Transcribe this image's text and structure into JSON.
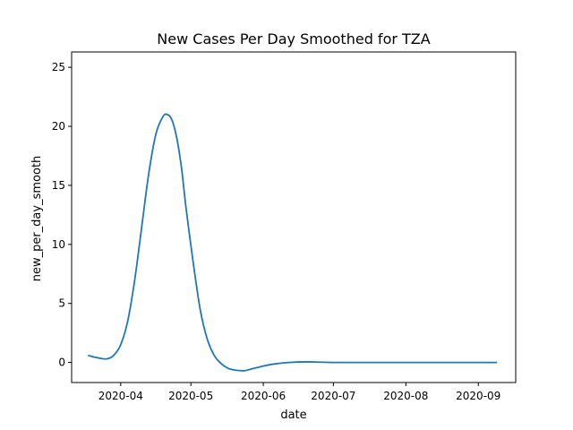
{
  "chart_data": {
    "type": "line",
    "title": "New Cases Per Day Smoothed for TZA",
    "xlabel": "date",
    "ylabel": "new_per_day_smooth",
    "xlim": [
      "2020-03-11",
      "2020-09-17"
    ],
    "ylim": [
      -1.7,
      26.3
    ],
    "x_ticks": [
      "2020-04",
      "2020-05",
      "2020-06",
      "2020-07",
      "2020-08",
      "2020-09"
    ],
    "y_ticks": [
      0,
      5,
      10,
      15,
      20,
      25
    ],
    "grid": false,
    "color": "#1f77b4",
    "series": [
      {
        "x": [
          "2020-03-18",
          "2020-03-22",
          "2020-03-26",
          "2020-03-29",
          "2020-04-01",
          "2020-04-04",
          "2020-04-07",
          "2020-04-10",
          "2020-04-13",
          "2020-04-16",
          "2020-04-19",
          "2020-04-21",
          "2020-04-23",
          "2020-04-25",
          "2020-04-27",
          "2020-04-29",
          "2020-05-02",
          "2020-05-05",
          "2020-05-08",
          "2020-05-11",
          "2020-05-14",
          "2020-05-17",
          "2020-05-20",
          "2020-05-24",
          "2020-05-27",
          "2020-05-31",
          "2020-06-05",
          "2020-06-12",
          "2020-06-20",
          "2020-07-01",
          "2020-08-01",
          "2020-09-09"
        ],
        "y": [
          0.6,
          0.4,
          0.3,
          0.6,
          1.5,
          3.5,
          7.0,
          11.5,
          16.0,
          19.3,
          20.8,
          21.0,
          20.5,
          19.0,
          16.5,
          13.0,
          8.5,
          4.5,
          2.0,
          0.6,
          -0.1,
          -0.5,
          -0.65,
          -0.7,
          -0.55,
          -0.35,
          -0.15,
          0.0,
          0.05,
          0.0,
          0.0,
          0.0
        ]
      }
    ]
  }
}
